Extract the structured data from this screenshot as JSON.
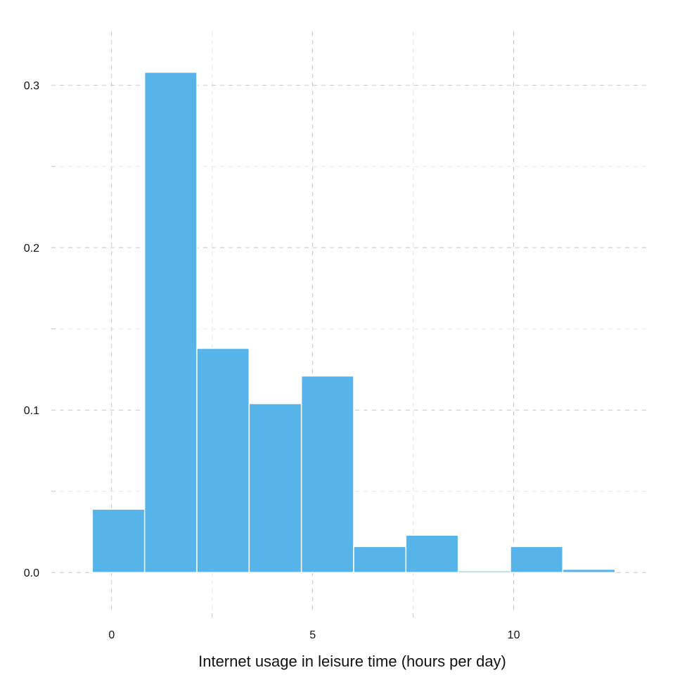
{
  "chart_data": {
    "type": "bar",
    "title": "",
    "xlabel": "Internet usage in leisure time (hours per day)",
    "ylabel": "",
    "bin_edges": [
      -0.48,
      0.82,
      2.12,
      3.42,
      4.72,
      6.02,
      7.32,
      8.62,
      9.92,
      11.22,
      12.52
    ],
    "values": [
      0.039,
      0.308,
      0.138,
      0.104,
      0.121,
      0.016,
      0.023,
      0.001,
      0.016,
      0.002
    ],
    "xlim": [
      -1.5,
      13.4
    ],
    "ylim": [
      -0.025,
      0.333
    ],
    "x_ticks": [
      0,
      5,
      10
    ],
    "x_tick_labels": [
      "0",
      "5",
      "10"
    ],
    "y_ticks": [
      0.0,
      0.1,
      0.2,
      0.3
    ],
    "y_tick_labels": [
      "0.0",
      "0.1",
      "0.2",
      "0.3"
    ],
    "grid": true,
    "legend": "none",
    "colors": {
      "bar_fill": "#56B4E9",
      "bar_stroke": "#ffffff",
      "grid_major": "#c8c8c8",
      "grid_minor": "#e6e6e6",
      "text": "#111111"
    }
  }
}
